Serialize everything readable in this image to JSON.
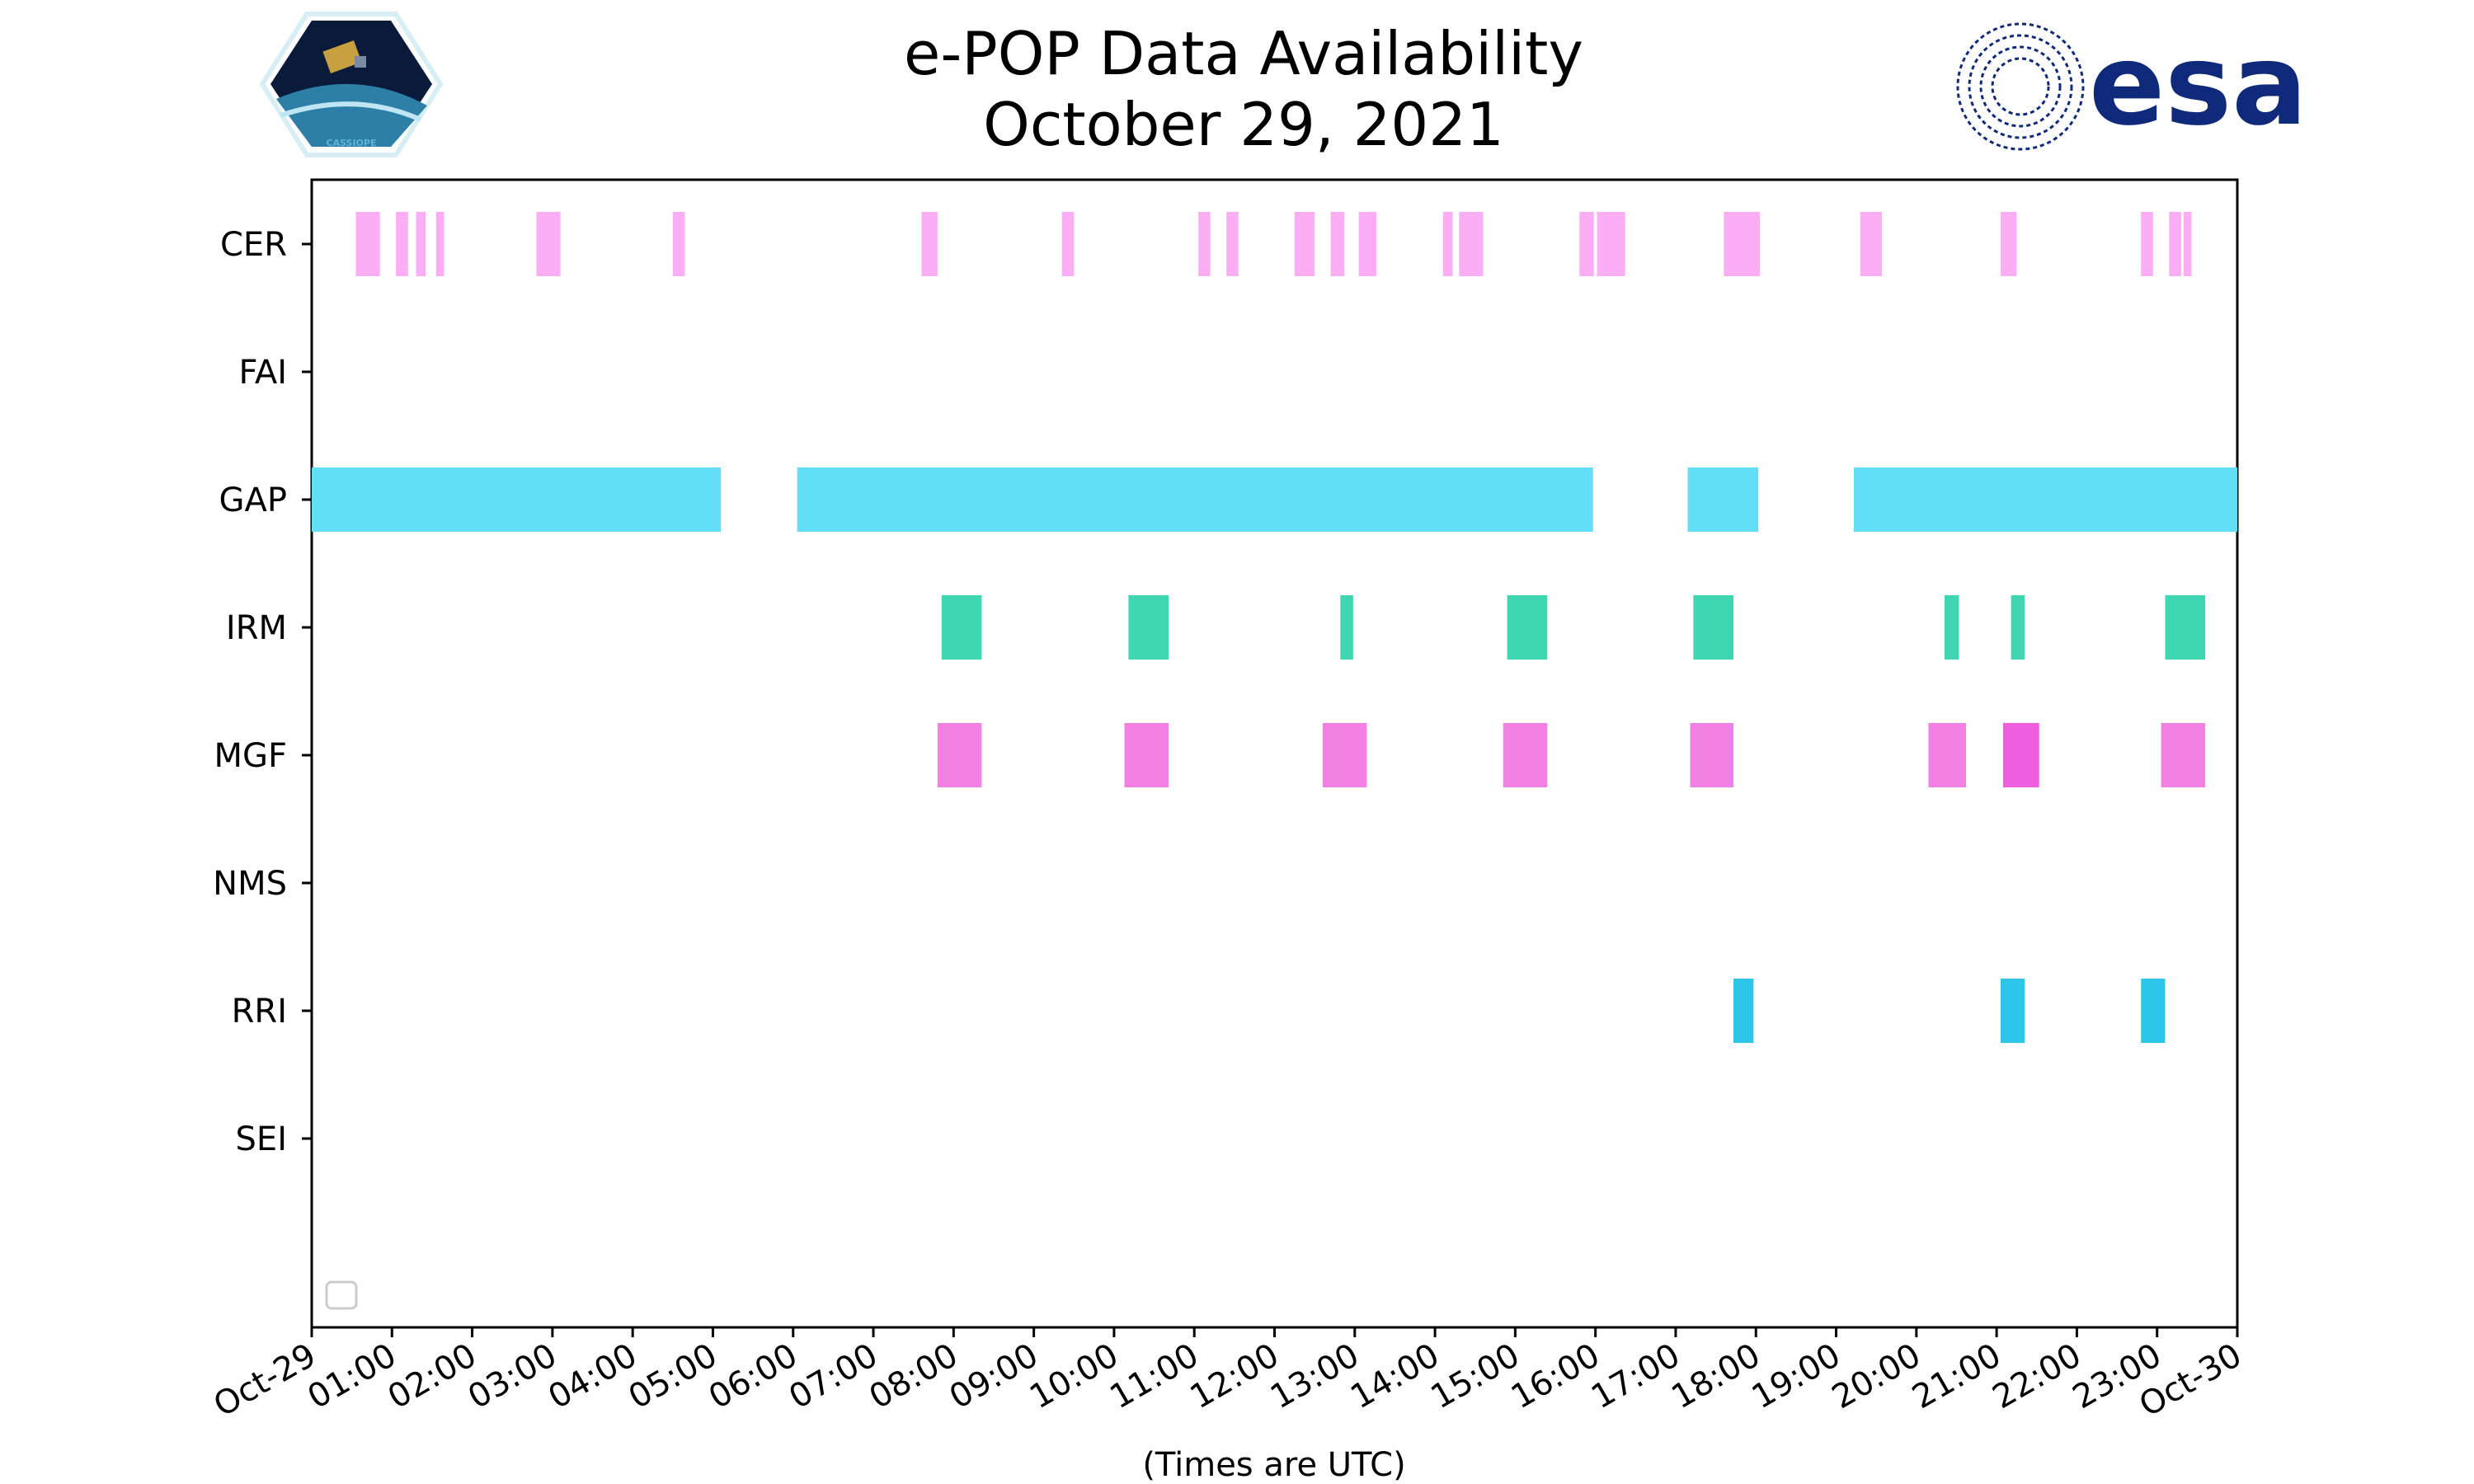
{
  "chart_data": {
    "type": "timeline",
    "title": "e-POP Data Availability",
    "subtitle": "October 29, 2021",
    "xlabel": "(Times are UTC)",
    "ylabel": "",
    "xlim_hours": [
      0,
      24
    ],
    "x_tick_labels": [
      "Oct-29",
      "01:00",
      "02:00",
      "03:00",
      "04:00",
      "05:00",
      "06:00",
      "07:00",
      "08:00",
      "09:00",
      "10:00",
      "11:00",
      "12:00",
      "13:00",
      "14:00",
      "15:00",
      "16:00",
      "17:00",
      "18:00",
      "19:00",
      "20:00",
      "21:00",
      "22:00",
      "23:00",
      "Oct-30"
    ],
    "categories": [
      "CER",
      "FAI",
      "GAP",
      "IRM",
      "MGF",
      "NMS",
      "RRI",
      "SEI"
    ],
    "legend": "lower-left (empty)",
    "series": [
      {
        "name": "CER",
        "color": "#fbaef3",
        "intervals": [
          [
            0.55,
            0.85
          ],
          [
            1.05,
            1.2
          ],
          [
            1.3,
            1.42
          ],
          [
            1.55,
            1.65
          ],
          [
            2.8,
            3.1
          ],
          [
            4.5,
            4.65
          ],
          [
            7.6,
            7.8
          ],
          [
            9.35,
            9.5
          ],
          [
            11.05,
            11.2
          ],
          [
            11.4,
            11.55
          ],
          [
            12.25,
            12.5
          ],
          [
            12.7,
            12.87
          ],
          [
            13.05,
            13.27
          ],
          [
            14.1,
            14.22
          ],
          [
            14.3,
            14.6
          ],
          [
            15.8,
            15.98
          ],
          [
            16.02,
            16.37
          ],
          [
            17.6,
            18.05
          ],
          [
            19.3,
            19.57
          ],
          [
            21.05,
            21.25
          ],
          [
            22.8,
            22.95
          ],
          [
            23.15,
            23.3
          ],
          [
            23.33,
            23.43
          ]
        ]
      },
      {
        "name": "FAI",
        "color": "#cccccc",
        "intervals": []
      },
      {
        "name": "GAP",
        "color": "#63def7",
        "intervals": [
          [
            0,
            5.1
          ],
          [
            6.05,
            15.97
          ],
          [
            17.15,
            18.03
          ],
          [
            19.22,
            24
          ]
        ]
      },
      {
        "name": "IRM",
        "color": "#3ed7b1",
        "intervals": [
          [
            7.85,
            8.35
          ],
          [
            10.18,
            10.68
          ],
          [
            12.82,
            12.98
          ],
          [
            14.9,
            15.4
          ],
          [
            17.22,
            17.72
          ],
          [
            20.35,
            20.53
          ],
          [
            21.18,
            21.35
          ],
          [
            23.1,
            23.6
          ]
        ]
      },
      {
        "name": "MGF",
        "color": "#f280e2",
        "intervals": [
          [
            7.8,
            8.35
          ],
          [
            10.13,
            10.68
          ],
          [
            12.6,
            13.15
          ],
          [
            14.85,
            15.4
          ],
          [
            17.18,
            17.72
          ],
          [
            20.15,
            20.62
          ],
          [
            21.08,
            21.53
          ],
          [
            23.05,
            23.6
          ]
        ]
      },
      {
        "name": "NMS",
        "color": "#cccccc",
        "intervals": []
      },
      {
        "name": "RRI",
        "color": "#2ec6e8",
        "intervals": [
          [
            17.72,
            17.97
          ],
          [
            21.05,
            21.35
          ],
          [
            22.8,
            23.1
          ]
        ]
      },
      {
        "name": "SEI",
        "color": "#cccccc",
        "intervals": []
      }
    ],
    "highlight_colors": {
      "MGF_alt": "#f05ee0"
    }
  },
  "logos": {
    "left": {
      "name": "CASSIOPE",
      "text": "CASSIOPE"
    },
    "right": {
      "name": "esa",
      "text": "esa",
      "color": "#0f2a7a"
    }
  }
}
